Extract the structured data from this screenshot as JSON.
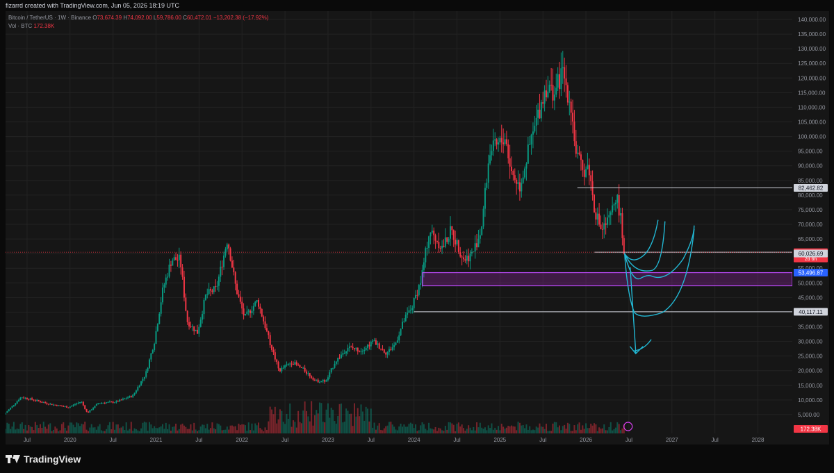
{
  "header": {
    "attribution": "fizarrd created with TradingView.com, Jun 05, 2026 18:19 UTC"
  },
  "legend": {
    "symbol": "Bitcoin / TetherUS · 1W · Binance",
    "o_label": "O",
    "o": "73,674.39",
    "h_label": "H",
    "h": "74,092.00",
    "l_label": "L",
    "l": "59,786.00",
    "c_label": "C",
    "c": "60,472.01",
    "change": "−13,202.38 (−17.92%)",
    "vol_label": "Vol · BTC",
    "vol": "172.38K"
  },
  "footer": {
    "brand": "TradingView"
  },
  "colors": {
    "up": "#089981",
    "down": "#f23645",
    "background": "#161616",
    "grid": "#232323",
    "zone": "#9c27b0",
    "drawing": "#22b8d4",
    "hline": "#d1d4dc"
  },
  "chart_data": {
    "type": "candlestick",
    "title": "Bitcoin / TetherUS · 1W · Binance",
    "xlabel": "",
    "ylabel": "",
    "ylim": [
      0,
      140000
    ],
    "grid": true,
    "y_ticks": [
      "5,000.00",
      "10,000.00",
      "15,000.00",
      "20,000.00",
      "25,000.00",
      "30,000.00",
      "35,000.00",
      "40,000.00",
      "45,000.00",
      "50,000.00",
      "55,000.00",
      "60,000.00",
      "65,000.00",
      "70,000.00",
      "75,000.00",
      "80,000.00",
      "85,000.00",
      "90,000.00",
      "95,000.00",
      "100,000.00",
      "105,000.00",
      "110,000.00",
      "115,000.00",
      "120,000.00",
      "125,000.00",
      "130,000.00",
      "135,000.00",
      "140,000.00"
    ],
    "y_tick_values": [
      5000,
      10000,
      15000,
      20000,
      25000,
      30000,
      35000,
      40000,
      45000,
      50000,
      55000,
      60000,
      65000,
      70000,
      75000,
      80000,
      85000,
      90000,
      95000,
      100000,
      105000,
      110000,
      115000,
      120000,
      125000,
      130000,
      135000,
      140000
    ],
    "x_ticks": [
      {
        "label": "Jul",
        "t": 2019.5
      },
      {
        "label": "2020",
        "t": 2020.0
      },
      {
        "label": "Jul",
        "t": 2020.5
      },
      {
        "label": "2021",
        "t": 2021.0
      },
      {
        "label": "Jul",
        "t": 2021.5
      },
      {
        "label": "2022",
        "t": 2022.0
      },
      {
        "label": "Jul",
        "t": 2022.5
      },
      {
        "label": "2023",
        "t": 2023.0
      },
      {
        "label": "Jul",
        "t": 2023.5
      },
      {
        "label": "2024",
        "t": 2024.0
      },
      {
        "label": "Jul",
        "t": 2024.5
      },
      {
        "label": "2025",
        "t": 2025.0
      },
      {
        "label": "Jul",
        "t": 2025.5
      },
      {
        "label": "2026",
        "t": 2026.0
      },
      {
        "label": "Jul",
        "t": 2026.5
      },
      {
        "label": "2027",
        "t": 2027.0
      },
      {
        "label": "Jul",
        "t": 2027.5
      },
      {
        "label": "2028",
        "t": 2028.0
      }
    ],
    "xlim": [
      2019.25,
      2028.4
    ],
    "price_path": [
      [
        2019.25,
        5000
      ],
      [
        2019.45,
        11000
      ],
      [
        2019.6,
        10000
      ],
      [
        2019.8,
        8500
      ],
      [
        2020.0,
        7500
      ],
      [
        2020.15,
        9500
      ],
      [
        2020.22,
        5500
      ],
      [
        2020.35,
        9000
      ],
      [
        2020.55,
        9300
      ],
      [
        2020.75,
        11500
      ],
      [
        2020.9,
        19000
      ],
      [
        2021.0,
        30000
      ],
      [
        2021.1,
        48000
      ],
      [
        2021.2,
        58000
      ],
      [
        2021.3,
        58000
      ],
      [
        2021.38,
        37000
      ],
      [
        2021.5,
        33000
      ],
      [
        2021.6,
        46000
      ],
      [
        2021.72,
        48000
      ],
      [
        2021.85,
        65000
      ],
      [
        2021.95,
        48000
      ],
      [
        2022.05,
        38000
      ],
      [
        2022.2,
        44000
      ],
      [
        2022.35,
        29000
      ],
      [
        2022.45,
        20000
      ],
      [
        2022.6,
        23000
      ],
      [
        2022.75,
        20000
      ],
      [
        2022.88,
        16500
      ],
      [
        2023.0,
        16500
      ],
      [
        2023.1,
        23000
      ],
      [
        2023.25,
        28000
      ],
      [
        2023.4,
        27000
      ],
      [
        2023.55,
        30000
      ],
      [
        2023.7,
        26000
      ],
      [
        2023.8,
        29000
      ],
      [
        2023.9,
        37000
      ],
      [
        2024.0,
        42000
      ],
      [
        2024.1,
        51000
      ],
      [
        2024.2,
        68000
      ],
      [
        2024.35,
        62000
      ],
      [
        2024.45,
        68000
      ],
      [
        2024.6,
        58000
      ],
      [
        2024.7,
        60000
      ],
      [
        2024.8,
        68000
      ],
      [
        2024.9,
        95000
      ],
      [
        2025.0,
        97000
      ],
      [
        2025.08,
        100000
      ],
      [
        2025.15,
        88000
      ],
      [
        2025.25,
        83000
      ],
      [
        2025.35,
        95000
      ],
      [
        2025.45,
        106000
      ],
      [
        2025.55,
        117000
      ],
      [
        2025.65,
        115000
      ],
      [
        2025.75,
        122000
      ],
      [
        2025.85,
        110000
      ],
      [
        2025.9,
        95000
      ],
      [
        2025.98,
        88000
      ],
      [
        2026.05,
        90000
      ],
      [
        2026.12,
        75000
      ],
      [
        2026.2,
        68000
      ],
      [
        2026.3,
        72000
      ],
      [
        2026.37,
        80000
      ],
      [
        2026.42,
        73000
      ],
      [
        2026.45,
        60472
      ]
    ],
    "hlines": [
      {
        "value": 82462.82,
        "label": "82,462.82",
        "from": 2025.9
      },
      {
        "value": 60472.01,
        "label": "60,472.01",
        "from": 2026.1
      },
      {
        "value": 40117.11,
        "label": "40,117.11",
        "from": 2024.0
      }
    ],
    "zone": {
      "low": 49000,
      "high": 53496.87,
      "from": 2024.1
    },
    "price_labels": [
      {
        "value": 60472.01,
        "label": "60,472.01",
        "sub": "2d 6h",
        "color": "#f23645"
      },
      {
        "value": 60026.69,
        "label": "60,026.69",
        "color": "#d1d4dc"
      },
      {
        "value": 53496.87,
        "label": "53,496.87",
        "color": "#2962ff"
      },
      {
        "value": 40117.11,
        "label": "40,117.11",
        "color": "#d1d4dc"
      },
      {
        "value": 82462.82,
        "label": "82,462.82",
        "color": "#d1d4dc"
      }
    ],
    "volume_label": "172.38K"
  }
}
